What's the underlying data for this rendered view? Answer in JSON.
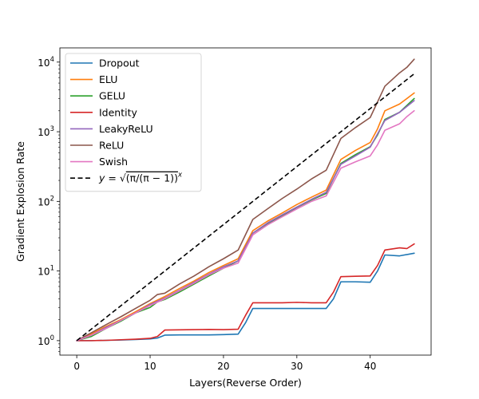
{
  "chart_data": {
    "type": "line",
    "xlabel": "Layers(Reverse Order)",
    "ylabel": "Gradient Explosion Rate",
    "xlim": [
      -2.3,
      48.3
    ],
    "ylim": [
      0.62,
      16000
    ],
    "yscale": "log",
    "xticks": [
      "0",
      "10",
      "20",
      "30",
      "40"
    ],
    "xtick_values": [
      0,
      10,
      20,
      30,
      40
    ],
    "ytick_base": "10",
    "ytick_exponents": [
      "0",
      "1",
      "2",
      "3",
      "4"
    ],
    "ytick_values": [
      1,
      10,
      100,
      1000,
      10000
    ],
    "legend_position": "upper-left",
    "series": [
      {
        "name": "Dropout",
        "color": "#1f77b4",
        "dashed": false,
        "x": [
          0,
          2,
          4,
          6,
          8,
          10,
          11,
          12,
          14,
          16,
          18,
          20,
          22,
          23,
          24,
          26,
          28,
          30,
          32,
          34,
          35,
          36,
          38,
          40,
          41,
          42,
          44,
          46
        ],
        "y": [
          1.0,
          1.0,
          1.01,
          1.02,
          1.04,
          1.06,
          1.09,
          1.2,
          1.21,
          1.21,
          1.21,
          1.22,
          1.24,
          1.8,
          2.9,
          2.9,
          2.9,
          2.9,
          2.9,
          2.9,
          4.0,
          7.0,
          7.0,
          6.9,
          10.0,
          17.0,
          16.5,
          18.0
        ]
      },
      {
        "name": "ELU",
        "color": "#ff7f0e",
        "dashed": false,
        "x": [
          0,
          2,
          4,
          6,
          8,
          10,
          12,
          14,
          16,
          18,
          20,
          22,
          24,
          26,
          28,
          30,
          32,
          34,
          36,
          38,
          40,
          41,
          42,
          44,
          46
        ],
        "y": [
          1.0,
          1.25,
          1.6,
          2.0,
          2.6,
          3.4,
          4.3,
          5.6,
          7.2,
          9.5,
          12.0,
          15.0,
          38,
          52,
          68,
          90,
          115,
          145,
          400,
          540,
          700,
          1100,
          2000,
          2500,
          3600
        ]
      },
      {
        "name": "GELU",
        "color": "#2ca02c",
        "dashed": false,
        "x": [
          0,
          2,
          4,
          6,
          8,
          10,
          11,
          12,
          14,
          16,
          18,
          20,
          22,
          24,
          26,
          28,
          30,
          32,
          34,
          36,
          38,
          40,
          41,
          42,
          44,
          46
        ],
        "y": [
          1.0,
          1.15,
          1.5,
          1.9,
          2.5,
          3.0,
          3.6,
          3.9,
          5.0,
          6.5,
          8.5,
          11,
          14,
          35,
          48,
          62,
          82,
          105,
          130,
          350,
          470,
          610,
          900,
          1500,
          1900,
          3000
        ]
      },
      {
        "name": "Identity",
        "color": "#d62728",
        "dashed": false,
        "x": [
          0,
          2,
          4,
          6,
          8,
          10,
          11,
          12,
          14,
          16,
          18,
          20,
          22,
          23,
          24,
          26,
          28,
          30,
          32,
          34,
          35,
          36,
          38,
          40,
          41,
          42,
          44,
          45,
          46
        ],
        "y": [
          1.0,
          1.0,
          1.01,
          1.03,
          1.05,
          1.08,
          1.15,
          1.42,
          1.43,
          1.44,
          1.45,
          1.44,
          1.46,
          2.3,
          3.5,
          3.5,
          3.5,
          3.55,
          3.5,
          3.5,
          5.0,
          8.3,
          8.4,
          8.5,
          12.0,
          20.0,
          21.5,
          21.0,
          24.5
        ]
      },
      {
        "name": "LeakyReLU",
        "color": "#9467bd",
        "dashed": false,
        "x": [
          0,
          2,
          4,
          6,
          8,
          10,
          12,
          14,
          16,
          18,
          20,
          22,
          24,
          26,
          28,
          30,
          32,
          34,
          36,
          38,
          40,
          42,
          44,
          46
        ],
        "y": [
          1.0,
          1.2,
          1.55,
          1.95,
          2.5,
          3.3,
          4.1,
          5.3,
          6.9,
          9.0,
          11.5,
          14.0,
          35,
          49,
          64,
          83,
          107,
          135,
          340,
          450,
          600,
          1450,
          1900,
          2800
        ]
      },
      {
        "name": "ReLU",
        "color": "#8c564b",
        "dashed": false,
        "x": [
          0,
          2,
          4,
          6,
          8,
          10,
          11,
          12,
          14,
          16,
          18,
          20,
          22,
          24,
          26,
          28,
          30,
          32,
          34,
          36,
          38,
          40,
          42,
          44,
          45,
          46
        ],
        "y": [
          1.0,
          1.3,
          1.7,
          2.2,
          2.9,
          3.8,
          4.6,
          4.8,
          6.5,
          8.5,
          11.5,
          15,
          20,
          55,
          78,
          110,
          150,
          210,
          280,
          800,
          1150,
          1600,
          4500,
          7000,
          8400,
          11000
        ]
      },
      {
        "name": "Swish",
        "color": "#e377c2",
        "dashed": false,
        "x": [
          0,
          2,
          4,
          6,
          8,
          10,
          12,
          14,
          16,
          18,
          20,
          22,
          24,
          26,
          28,
          30,
          32,
          34,
          36,
          38,
          40,
          41,
          42,
          44,
          45,
          46
        ],
        "y": [
          1.0,
          1.2,
          1.5,
          1.95,
          2.5,
          3.2,
          4.0,
          5.2,
          6.7,
          8.8,
          11,
          13,
          33,
          46,
          60,
          78,
          100,
          120,
          300,
          370,
          450,
          650,
          1050,
          1300,
          1650,
          2000
        ]
      },
      {
        "name": "$y = \\sqrt{(\\pi/(\\pi-1))^x}$",
        "label_prefix": "y = ",
        "label_expr": "(π/(π − 1))",
        "label_power": "x",
        "color": "#000000",
        "dashed": true,
        "x": [
          0,
          46
        ],
        "y": [
          1.0,
          6800
        ]
      }
    ]
  }
}
